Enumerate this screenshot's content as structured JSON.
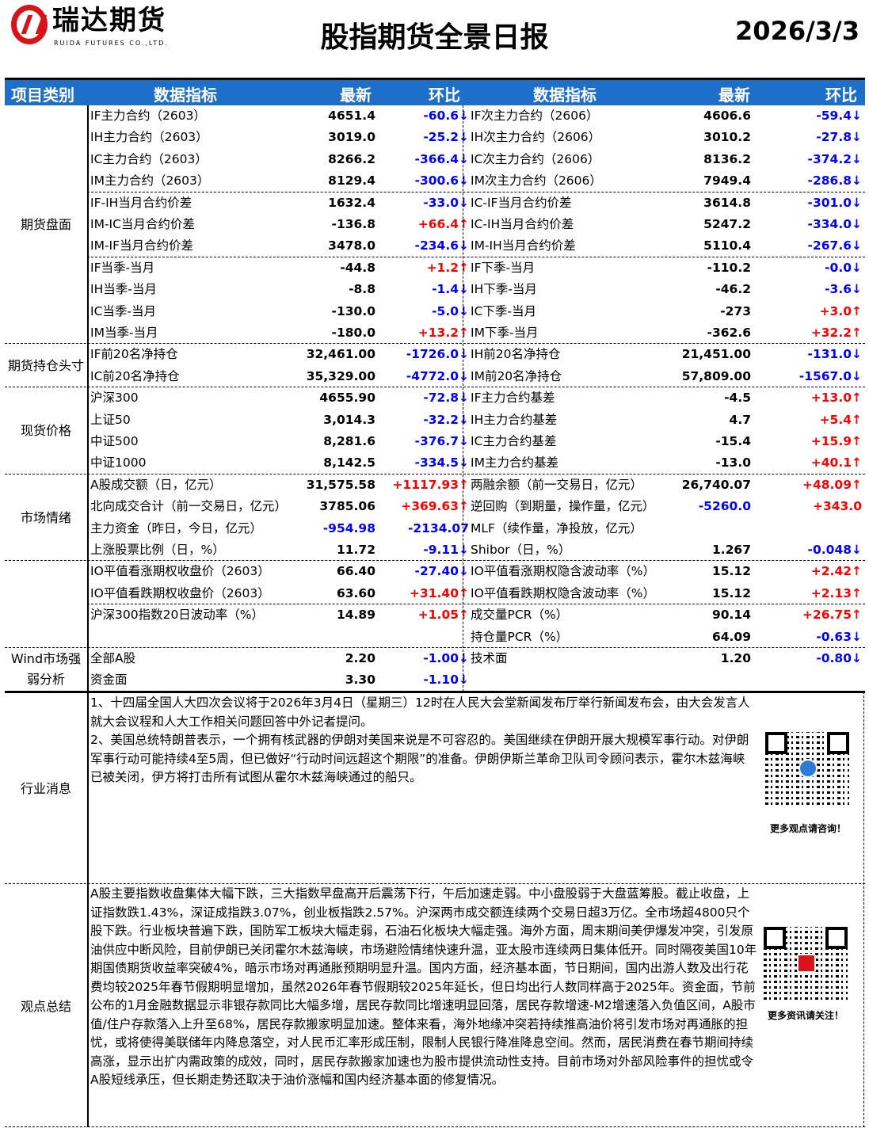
{
  "header": {
    "logo_cn": "瑞达期货",
    "logo_en": "RUIDA FUTURES CO.,LTD.",
    "title": "股指期货全景日报",
    "date": "2026/3/3"
  },
  "columns": [
    "项目类别",
    "数据指标",
    "最新",
    "环比",
    "数据指标",
    "最新",
    "环比"
  ],
  "colors": {
    "header_bg": "#1e6fc8",
    "up": "#ff0000",
    "down": "#0000ff",
    "logo": "#d8141b"
  },
  "categories": [
    {
      "label": "期货盘面",
      "rows": [
        0,
        10
      ]
    },
    {
      "label": "期货持仓头寸",
      "rows": [
        11,
        12
      ]
    },
    {
      "label": "现货价格",
      "rows": [
        13,
        16
      ]
    },
    {
      "label": "市场情绪",
      "rows": [
        17,
        20
      ]
    },
    {
      "label": "",
      "rows": [
        21,
        24
      ]
    },
    {
      "label": "Wind市场强弱分析",
      "rows": [
        25,
        26
      ]
    }
  ],
  "rows": [
    {
      "n1": "IF主力合约（2603）",
      "v1": "4651.4",
      "c1": "-60.6↓",
      "n2": "IF次主力合约（2606）",
      "v2": "4606.6",
      "c2": "-59.4↓"
    },
    {
      "n1": "IH主力合约（2603）",
      "v1": "3019.0",
      "c1": "-25.2↓",
      "n2": "IH次主力合约（2606）",
      "v2": "3010.2",
      "c2": "-27.8↓"
    },
    {
      "n1": "IC主力合约（2603）",
      "v1": "8266.2",
      "c1": "-366.4↓",
      "n2": "IC次主力合约（2606）",
      "v2": "8136.2",
      "c2": "-374.2↓"
    },
    {
      "n1": "IM主力合约（2603）",
      "v1": "8129.4",
      "c1": "-300.6↓",
      "n2": "IM次主力合约（2606）",
      "v2": "7949.4",
      "c2": "-286.8↓"
    },
    {
      "n1": "IF-IH当月合约价差",
      "v1": "1632.4",
      "c1": "-33.0↓",
      "n2": "IC-IF当月合约价差",
      "v2": "3614.8",
      "c2": "-301.0↓"
    },
    {
      "n1": "IM-IC当月合约价差",
      "v1": "-136.8",
      "c1": "+66.4↑",
      "n2": "IC-IH当月合约价差",
      "v2": "5247.2",
      "c2": "-334.0↓"
    },
    {
      "n1": "IM-IF当月合约价差",
      "v1": "3478.0",
      "c1": "-234.6↓",
      "n2": "IM-IH当月合约价差",
      "v2": "5110.4",
      "c2": "-267.6↓"
    },
    {
      "n1": "IF当季-当月",
      "v1": "-44.8",
      "c1": "+1.2↑",
      "n2": "IF下季-当月",
      "v2": "-110.2",
      "c2": "-0.0↓"
    },
    {
      "n1": "IH当季-当月",
      "v1": "-8.8",
      "c1": "-1.4↓",
      "n2": "IH下季-当月",
      "v2": "-46.2",
      "c2": "-3.6↓"
    },
    {
      "n1": "IC当季-当月",
      "v1": "-130.0",
      "c1": "-5.0↓",
      "n2": "IC下季-当月",
      "v2": "-273",
      "c2": "+3.0↑"
    },
    {
      "n1": "IM当季-当月",
      "v1": "-180.0",
      "c1": "+13.2↑",
      "n2": "IM下季-当月",
      "v2": "-362.6",
      "c2": "+32.2↑"
    },
    {
      "n1": "IF前20名净持仓",
      "v1": "32,461.00",
      "c1": "-1726.0↓",
      "n2": "IH前20名净持仓",
      "v2": "21,451.00",
      "c2": "-131.0↓"
    },
    {
      "n1": "IC前20名净持仓",
      "v1": "35,329.00",
      "c1": "-4772.0↓",
      "n2": "IM前20名净持仓",
      "v2": "57,809.00",
      "c2": "-1567.0↓"
    },
    {
      "n1": "沪深300",
      "v1": "4655.90",
      "c1": "-72.8↓",
      "n2": "IF主力合约基差",
      "v2": "-4.5",
      "c2": "+13.0↑"
    },
    {
      "n1": "上证50",
      "v1": "3,014.3",
      "c1": "-32.2↓",
      "n2": "IH主力合约基差",
      "v2": "4.7",
      "c2": "+5.4↑"
    },
    {
      "n1": "中证500",
      "v1": "8,281.6",
      "c1": "-376.7↓",
      "n2": "IC主力合约基差",
      "v2": "-15.4",
      "c2": "+15.9↑"
    },
    {
      "n1": "中证1000",
      "v1": "8,142.5",
      "c1": "-334.5↓",
      "n2": "IM主力合约基差",
      "v2": "-13.0",
      "c2": "+40.1↑"
    },
    {
      "n1": "A股成交额（日，亿元）",
      "v1": "31,575.58",
      "c1": "+1117.93↑",
      "n2": "两融余额（前一交易日，亿元）",
      "v2": "26,740.07",
      "c2": "+48.09↑"
    },
    {
      "n1": "北向成交合计（前一交易日，亿元）",
      "v1": "3785.06",
      "c1": "+369.63↑",
      "n2": "逆回购（到期量，操作量，亿元）",
      "v2": "-5260.0",
      "v2c": "blue",
      "c2": "+343.0"
    },
    {
      "n1": "主力资金（昨日，今日，亿元）",
      "v1": "-954.98",
      "v1c": "blue",
      "c1": "-2134.07",
      "n2": "MLF（续作量，净投放，亿元）",
      "v2": "",
      "c2": ""
    },
    {
      "n1": "上涨股票比例（日，%）",
      "v1": "11.72",
      "c1": "-9.11↓",
      "n2": "Shibor（日，%）",
      "v2": "1.267",
      "c2": "-0.048↓"
    },
    {
      "n1": "IO平值看涨期权收盘价（2603）",
      "v1": "66.40",
      "c1": "-27.40↓",
      "n2": "IO平值看涨期权隐含波动率（%）",
      "v2": "15.12",
      "c2": "+2.42↑"
    },
    {
      "n1": "IO平值看跌期权收盘价（2603）",
      "v1": "63.60",
      "c1": "+31.40↑",
      "n2": "IO平值看跌期权隐含波动率（%）",
      "v2": "15.12",
      "c2": "+2.13↑"
    },
    {
      "n1": "沪深300指数20日波动率（%）",
      "v1": "14.89",
      "c1": "+1.05↑",
      "n2": "成交量PCR（%）",
      "v2": "90.14",
      "c2": "+26.75↑"
    },
    {
      "n1": "",
      "v1": "",
      "c1": "",
      "n2": "持仓量PCR（%）",
      "v2": "64.09",
      "c2": "-0.63↓"
    },
    {
      "n1": "全部A股",
      "v1": "2.20",
      "c1": "-1.00↓",
      "n2": "技术面",
      "v2": "1.20",
      "c2": "-0.80↓"
    },
    {
      "n1": "资金面",
      "v1": "3.30",
      "c1": "-1.10↓",
      "n2": "",
      "v2": "",
      "c2": ""
    }
  ],
  "news": {
    "label": "行业消息",
    "text": "1、十四届全国人大四次会议将于2026年3月4日（星期三）12时在人民大会堂新闻发布厅举行新闻发布会，由大会发言人就大会议程和人大工作相关问题回答中外记者提问。\n2、美国总统特朗普表示，一个拥有核武器的伊朗对美国来说是不可容忍的。美国继续在伊朗开展大规模军事行动。对伊朗军事行动可能持续4至5周，但已做好“行动时间远超这个期限”的准备。伊朗伊斯兰革命卫队司令顾问表示，霍尔木兹海峡已被关闭，伊方将打击所有试图从霍尔木兹海峡通过的船只。",
    "qr_caption": "更多观点请咨询！"
  },
  "summary": {
    "label": "观点总结",
    "text": "A股主要指数收盘集体大幅下跌，三大指数早盘高开后震荡下行，午后加速走弱。中小盘股弱于大盘蓝筹股。截止收盘，上证指数跌1.43%，深证成指跌3.07%，创业板指跌2.57%。沪深两市成交额连续两个交易日超3万亿。全市场超4800只个股下跌。行业板块普遍下跌，国防军工板块大幅走弱，石油石化板块大幅走强。海外方面，周末期间美伊爆发冲突，引发原油供应中断风险，目前伊朗已关闭霍尔木兹海峡，市场避险情绪快速升温，亚太股市连续两日集体低开。同时隔夜美国10年期国债期货收益率突破4%，暗示市场对再通胀预期明显升温。国内方面，经济基本面，节日期间，国内出游人数及出行花费均较2025年春节假期明显增加，虽然2026年春节假期较2025年延长，但日均出行人数同样高于2025年。资金面，节前公布的1月金融数据显示非银存款同比大幅多增，居民存款同比增速明显回落，居民存款增速-M2增速落入负值区间，A股市值/住户存款落入上升至68%，居民存款搬家明显加速。整体来看，海外地缘冲突若持续推高油价将引发市场对再通胀的担忧，或将使得美联储年内降息落空，对人民币汇率形成压制，限制人民银行降准降息空间。然而，居民消费在春节期间持续高涨，显示出扩内需政策的成效，同时，居民存款搬家加速也为股市提供流动性支持。目前市场对外部风险事件的担忧或令A股短线承压，但长期走势还取决于油价涨幅和国内经济基本面的修复情况。",
    "qr_caption": "更多资讯请关注！"
  }
}
